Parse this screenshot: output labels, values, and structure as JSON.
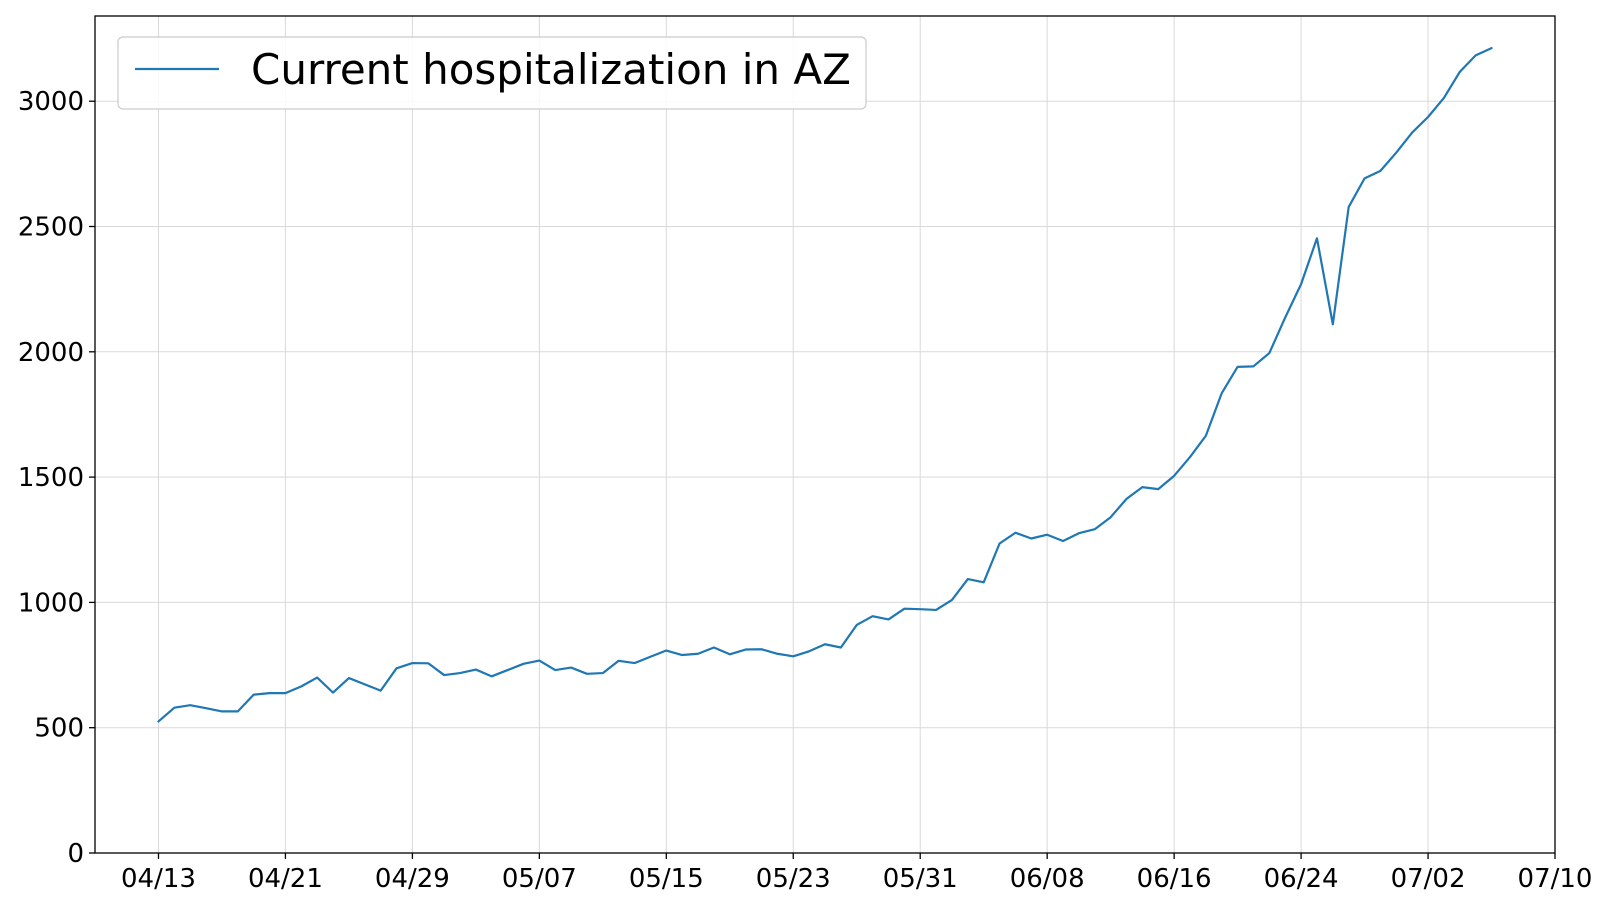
{
  "chart_data": {
    "type": "line",
    "title": "",
    "xlabel": "",
    "ylabel": "",
    "x_start": "2020-04-13",
    "x_ticks": [
      "04/13",
      "04/21",
      "04/29",
      "05/07",
      "05/15",
      "05/23",
      "05/31",
      "06/08",
      "06/16",
      "06/24",
      "07/02",
      "07/10"
    ],
    "y_ticks": [
      0,
      500,
      1000,
      1500,
      2000,
      2500,
      3000
    ],
    "xlim": [
      "2020-04-09",
      "2020-07-10"
    ],
    "ylim": [
      0,
      3340
    ],
    "grid": true,
    "legend": "top-left",
    "series": [
      {
        "name": "Current hospitalization in AZ",
        "color": "#1f77b4",
        "values": [
          525,
          580,
          590,
          578,
          565,
          565,
          632,
          638,
          638,
          665,
          700,
          640,
          698,
          673,
          648,
          737,
          758,
          757,
          710,
          718,
          732,
          705,
          730,
          755,
          768,
          730,
          740,
          715,
          718,
          767,
          758,
          783,
          808,
          790,
          795,
          820,
          793,
          812,
          813,
          795,
          785,
          805,
          833,
          820,
          910,
          945,
          932,
          975,
          973,
          970,
          1010,
          1093,
          1080,
          1235,
          1278,
          1255,
          1270,
          1245,
          1276,
          1292,
          1340,
          1413,
          1460,
          1452,
          1505,
          1580,
          1665,
          1835,
          1940,
          1942,
          1995,
          2137,
          2270,
          2453,
          2110,
          2578,
          2692,
          2722,
          2795,
          2875,
          2937,
          3013,
          3117,
          3183,
          3212
        ]
      }
    ]
  }
}
